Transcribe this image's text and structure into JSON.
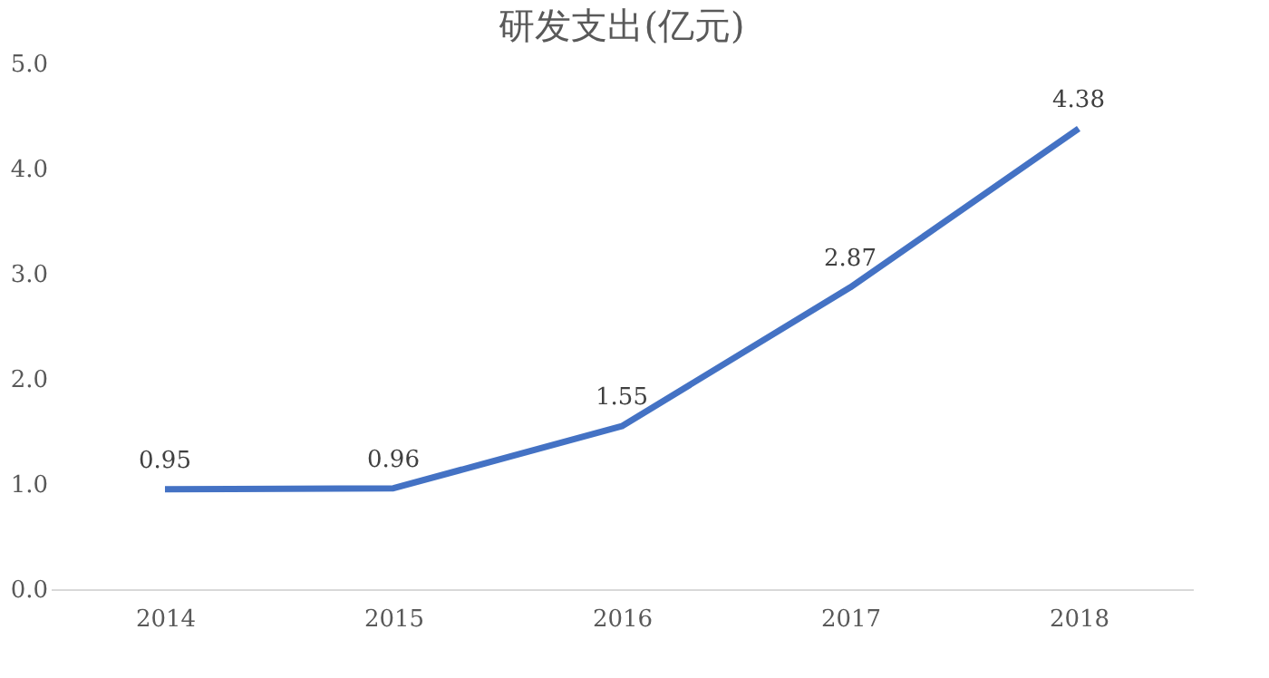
{
  "chart_data": {
    "type": "line",
    "title": "研发支出(亿元)",
    "categories": [
      "2014",
      "2015",
      "2016",
      "2017",
      "2018"
    ],
    "series": [
      {
        "color": "#4472c4",
        "values": [
          0.95,
          0.96,
          1.55,
          2.87,
          4.38
        ]
      }
    ],
    "ylim": [
      0,
      5
    ],
    "yticks": [
      {
        "value": 0,
        "label": "0.0"
      },
      {
        "value": 1,
        "label": "1.0"
      },
      {
        "value": 2,
        "label": "2.0"
      },
      {
        "value": 3,
        "label": "3.0"
      },
      {
        "value": 4,
        "label": "4.0"
      },
      {
        "value": 5,
        "label": "5.0"
      }
    ],
    "grid": false,
    "marker": "none",
    "line_style": "solid",
    "data_labels": true
  }
}
